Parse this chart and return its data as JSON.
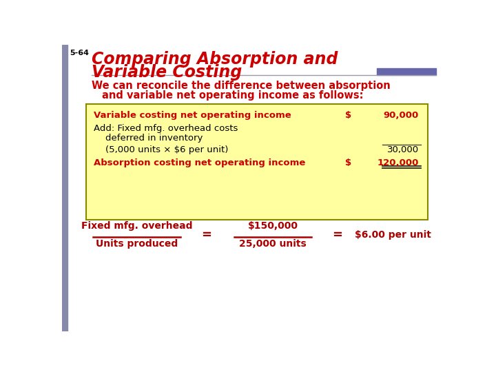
{
  "slide_number": "5-64",
  "title_line1": "Comparing Absorption and",
  "title_line2": "Variable Costing",
  "title_color": "#CC0000",
  "slide_num_color": "#000000",
  "header_bar_color": "#6666AA",
  "body_text_color": "#CC0000",
  "box_bg_color": "#FFFFA0",
  "box_border_color": "#888800",
  "table_rows": [
    {
      "label": "Variable costing net operating income",
      "dollar": "$",
      "value": "90,000",
      "red": true,
      "underline_above": false,
      "underline_below": false
    },
    {
      "label": "Add: Fixed mfg. overhead costs",
      "dollar": "",
      "value": "",
      "red": false,
      "underline_above": false,
      "underline_below": false
    },
    {
      "label": "    deferred in inventory",
      "dollar": "",
      "value": "",
      "red": false,
      "underline_above": false,
      "underline_below": false
    },
    {
      "label": "    (5,000 units × $6 per unit)",
      "dollar": "",
      "value": "30,000",
      "red": false,
      "underline_above": true,
      "underline_below": false
    },
    {
      "label": "Absorption costing net operating income",
      "dollar": "$",
      "value": "120,000",
      "red": true,
      "underline_above": false,
      "underline_below": true
    }
  ],
  "footer_fraction_num": "Fixed mfg. overhead",
  "footer_fraction_den": "Units produced",
  "footer_eq1_num": "$150,000",
  "footer_eq1_den": "25,000 units",
  "footer_eq2": "$6.00 per unit",
  "footer_color": "#AA0000",
  "background_color": "#FFFFFF",
  "left_bar_color": "#8888AA"
}
